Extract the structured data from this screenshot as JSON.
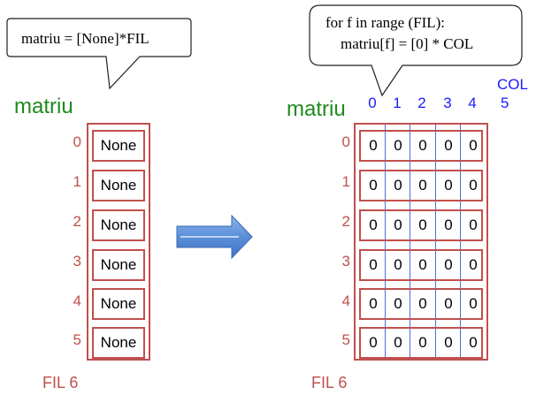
{
  "left": {
    "bubble_text": "matriu = [None]*FIL",
    "title": "matriu",
    "row_indices": [
      "0",
      "1",
      "2",
      "3",
      "4",
      "5"
    ],
    "cells": [
      "None",
      "None",
      "None",
      "None",
      "None",
      "None"
    ],
    "fil_label": "FIL 6"
  },
  "right": {
    "bubble_line1": "for f in range (FIL):",
    "bubble_line2": "    matriu[f] = [0] * COL",
    "title": "matriu",
    "col_indices": [
      "0",
      "1",
      "2",
      "3",
      "4"
    ],
    "col_label": "COL",
    "col_count": "5",
    "row_indices": [
      "0",
      "1",
      "2",
      "3",
      "4",
      "5"
    ],
    "grid": [
      [
        "0",
        "0",
        "0",
        "0",
        "0"
      ],
      [
        "0",
        "0",
        "0",
        "0",
        "0"
      ],
      [
        "0",
        "0",
        "0",
        "0",
        "0"
      ],
      [
        "0",
        "0",
        "0",
        "0",
        "0"
      ],
      [
        "0",
        "0",
        "0",
        "0",
        "0"
      ],
      [
        "0",
        "0",
        "0",
        "0",
        "0"
      ]
    ],
    "fil_label": "FIL 6"
  },
  "colors": {
    "title_green": "#1e8a1e",
    "index_red": "#c0504d",
    "index_blue": "#1a1aff",
    "arrow_blue": "#5b8fd8"
  },
  "icons": {
    "transform_arrow": "right-arrow-icon"
  }
}
